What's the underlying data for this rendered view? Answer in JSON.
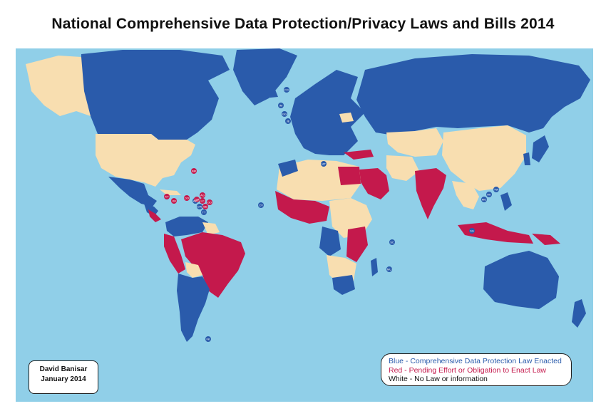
{
  "title": "National Comprehensive Data Protection/Privacy Laws and Bills 2014",
  "credit": {
    "author": "David Banisar",
    "date": "January 2014"
  },
  "legend": {
    "blue": {
      "text": "Blue - Comprehensive Data Protection Law Enacted",
      "color": "#2a5bab"
    },
    "red": {
      "text": "Red -  Pending Effort or Obligation to Enact Law",
      "color": "#c4194c"
    },
    "white": {
      "text": "White - No Law or information",
      "color": "#111111"
    }
  },
  "colors": {
    "ocean": "#90cfe8",
    "law_enacted": "#2a5bab",
    "pending": "#c4194c",
    "no_law": "#f8deb0"
  },
  "small_markers": {
    "blue": [
      "FO",
      "IM",
      "GG",
      "JE",
      "MT",
      "CV",
      "MU",
      "SC",
      "TW",
      "HK",
      "MO",
      "SG",
      "AW",
      "CW",
      "TT",
      "FK"
    ],
    "red": [
      "BM",
      "KY",
      "JM",
      "DO",
      "AG",
      "DM",
      "LC",
      "BB",
      "GD"
    ]
  }
}
